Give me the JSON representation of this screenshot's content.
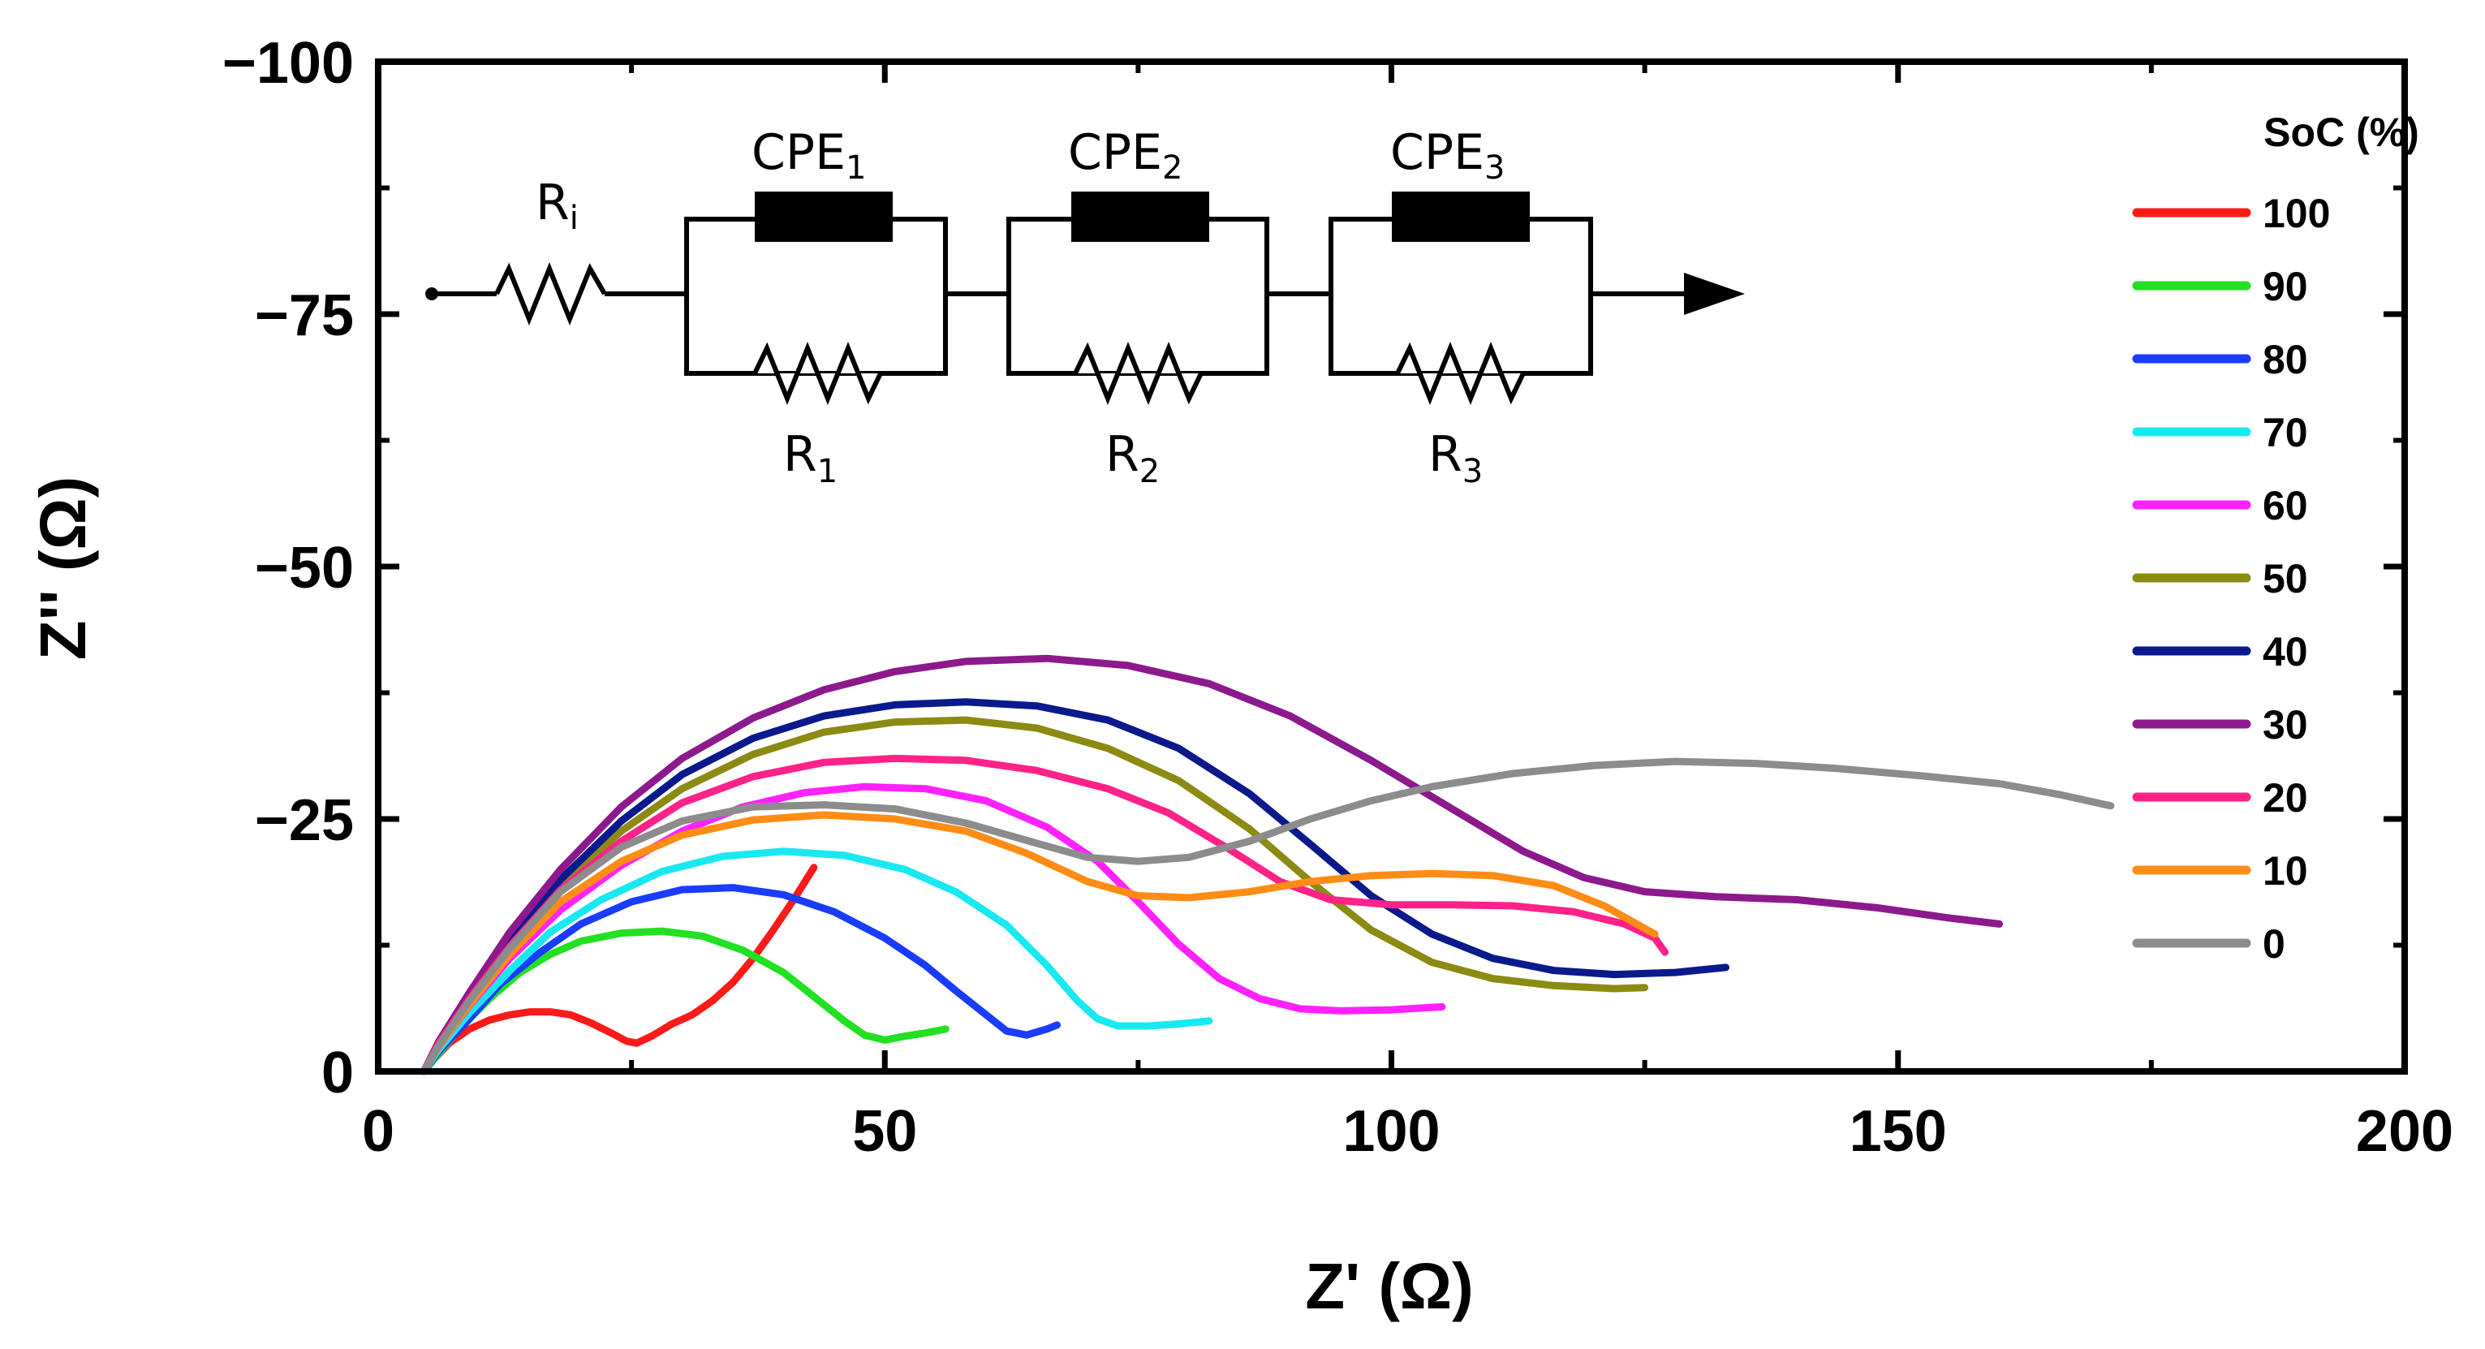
{
  "chart_data": {
    "type": "line",
    "title": "",
    "xlabel": "Z' (Ω)",
    "ylabel": "Z'' (Ω)",
    "xlim": [
      0,
      200
    ],
    "ylim": [
      0,
      -100
    ],
    "xticks": [
      0,
      50,
      100,
      150,
      200
    ],
    "yticks": [
      0,
      -25,
      -50,
      -75,
      -100
    ],
    "xtick_labels": [
      "0",
      "50",
      "100",
      "150",
      "200"
    ],
    "ytick_labels": [
      "0",
      "−25",
      "−50",
      "−75",
      "−100"
    ],
    "legend_title": "SoC (%)",
    "legend_position": "right",
    "series": [
      {
        "name": "100",
        "color": "#ff1a1a",
        "points": [
          [
            4.5,
            0
          ],
          [
            5.5,
            -1.2
          ],
          [
            7,
            -2.8
          ],
          [
            9,
            -4.2
          ],
          [
            11,
            -5.1
          ],
          [
            13,
            -5.6
          ],
          [
            15,
            -5.9
          ],
          [
            17,
            -5.9
          ],
          [
            19,
            -5.6
          ],
          [
            21,
            -4.8
          ],
          [
            23,
            -3.8
          ],
          [
            24.5,
            -3.0
          ],
          [
            25.5,
            -2.8
          ],
          [
            27,
            -3.5
          ],
          [
            29,
            -4.7
          ],
          [
            31,
            -5.6
          ],
          [
            33,
            -7.0
          ],
          [
            35,
            -8.8
          ],
          [
            37,
            -11.2
          ],
          [
            39,
            -14.0
          ],
          [
            41,
            -17.0
          ],
          [
            43,
            -20.2
          ]
        ]
      },
      {
        "name": "90",
        "color": "#22e022",
        "points": [
          [
            4.5,
            0
          ],
          [
            6,
            -1.8
          ],
          [
            8,
            -4.2
          ],
          [
            11,
            -7.2
          ],
          [
            14,
            -9.8
          ],
          [
            17,
            -11.6
          ],
          [
            20,
            -12.9
          ],
          [
            24,
            -13.7
          ],
          [
            28,
            -13.9
          ],
          [
            32,
            -13.4
          ],
          [
            36,
            -12.0
          ],
          [
            40,
            -9.8
          ],
          [
            43,
            -7.4
          ],
          [
            46,
            -5.0
          ],
          [
            48,
            -3.6
          ],
          [
            50,
            -3.1
          ],
          [
            52,
            -3.5
          ],
          [
            54,
            -3.8
          ],
          [
            56,
            -4.2
          ]
        ]
      },
      {
        "name": "80",
        "color": "#1a3cff",
        "points": [
          [
            4.5,
            0
          ],
          [
            6,
            -2.0
          ],
          [
            9,
            -5.2
          ],
          [
            12,
            -8.6
          ],
          [
            16,
            -11.8
          ],
          [
            20,
            -14.6
          ],
          [
            25,
            -16.8
          ],
          [
            30,
            -18.0
          ],
          [
            35,
            -18.2
          ],
          [
            40,
            -17.5
          ],
          [
            45,
            -15.8
          ],
          [
            50,
            -13.2
          ],
          [
            54,
            -10.5
          ],
          [
            57,
            -8.0
          ],
          [
            60,
            -5.6
          ],
          [
            62,
            -4.0
          ],
          [
            64,
            -3.6
          ],
          [
            66,
            -4.2
          ],
          [
            67,
            -4.6
          ]
        ]
      },
      {
        "name": "70",
        "color": "#1ae8f0",
        "points": [
          [
            4.5,
            0
          ],
          [
            6,
            -2.2
          ],
          [
            9,
            -5.8
          ],
          [
            13,
            -10.0
          ],
          [
            17,
            -13.8
          ],
          [
            22,
            -17.0
          ],
          [
            28,
            -19.8
          ],
          [
            34,
            -21.3
          ],
          [
            40,
            -21.8
          ],
          [
            46,
            -21.4
          ],
          [
            52,
            -20.0
          ],
          [
            57,
            -17.8
          ],
          [
            62,
            -14.5
          ],
          [
            66,
            -10.5
          ],
          [
            69,
            -7.0
          ],
          [
            71,
            -5.2
          ],
          [
            73,
            -4.5
          ],
          [
            76,
            -4.5
          ],
          [
            79,
            -4.7
          ],
          [
            82,
            -5.0
          ]
        ]
      },
      {
        "name": "60",
        "color": "#ff22ff",
        "points": [
          [
            4.5,
            0
          ],
          [
            6,
            -2.5
          ],
          [
            9,
            -6.5
          ],
          [
            13,
            -11.2
          ],
          [
            18,
            -16.0
          ],
          [
            24,
            -20.4
          ],
          [
            30,
            -23.8
          ],
          [
            36,
            -26.2
          ],
          [
            42,
            -27.6
          ],
          [
            48,
            -28.2
          ],
          [
            54,
            -28.0
          ],
          [
            60,
            -26.8
          ],
          [
            66,
            -24.2
          ],
          [
            71,
            -20.8
          ],
          [
            75,
            -16.8
          ],
          [
            79,
            -12.6
          ],
          [
            83,
            -9.2
          ],
          [
            87,
            -7.2
          ],
          [
            91,
            -6.2
          ],
          [
            95,
            -6.0
          ],
          [
            100,
            -6.1
          ],
          [
            105,
            -6.4
          ]
        ]
      },
      {
        "name": "50",
        "color": "#8b8b14",
        "points": [
          [
            4.5,
            0
          ],
          [
            6,
            -2.8
          ],
          [
            9,
            -7.2
          ],
          [
            13,
            -12.6
          ],
          [
            18,
            -18.5
          ],
          [
            24,
            -23.8
          ],
          [
            30,
            -28.0
          ],
          [
            37,
            -31.4
          ],
          [
            44,
            -33.6
          ],
          [
            51,
            -34.6
          ],
          [
            58,
            -34.8
          ],
          [
            65,
            -34.0
          ],
          [
            72,
            -32.0
          ],
          [
            79,
            -28.8
          ],
          [
            86,
            -24.0
          ],
          [
            92,
            -18.8
          ],
          [
            98,
            -14.0
          ],
          [
            104,
            -10.8
          ],
          [
            110,
            -9.2
          ],
          [
            116,
            -8.5
          ],
          [
            122,
            -8.2
          ],
          [
            125,
            -8.3
          ]
        ]
      },
      {
        "name": "40",
        "color": "#0a1a8c",
        "points": [
          [
            4.5,
            0
          ],
          [
            6,
            -2.8
          ],
          [
            9,
            -7.4
          ],
          [
            13,
            -13.0
          ],
          [
            18,
            -19.0
          ],
          [
            24,
            -24.8
          ],
          [
            30,
            -29.4
          ],
          [
            37,
            -33.0
          ],
          [
            44,
            -35.2
          ],
          [
            51,
            -36.3
          ],
          [
            58,
            -36.6
          ],
          [
            65,
            -36.2
          ],
          [
            72,
            -34.8
          ],
          [
            79,
            -32.0
          ],
          [
            86,
            -27.5
          ],
          [
            92,
            -22.5
          ],
          [
            98,
            -17.4
          ],
          [
            104,
            -13.6
          ],
          [
            110,
            -11.2
          ],
          [
            116,
            -10.0
          ],
          [
            122,
            -9.6
          ],
          [
            128,
            -9.8
          ],
          [
            133,
            -10.3
          ]
        ]
      },
      {
        "name": "30",
        "color": "#8c1a8c",
        "points": [
          [
            4.5,
            0
          ],
          [
            6,
            -3.0
          ],
          [
            9,
            -7.8
          ],
          [
            13,
            -13.8
          ],
          [
            18,
            -20.0
          ],
          [
            24,
            -26.2
          ],
          [
            30,
            -31.0
          ],
          [
            37,
            -35.0
          ],
          [
            44,
            -37.8
          ],
          [
            51,
            -39.6
          ],
          [
            58,
            -40.6
          ],
          [
            66,
            -40.9
          ],
          [
            74,
            -40.2
          ],
          [
            82,
            -38.4
          ],
          [
            90,
            -35.2
          ],
          [
            98,
            -30.8
          ],
          [
            106,
            -26.0
          ],
          [
            113,
            -21.8
          ],
          [
            119,
            -19.2
          ],
          [
            125,
            -17.8
          ],
          [
            132,
            -17.3
          ],
          [
            140,
            -17.0
          ],
          [
            148,
            -16.2
          ],
          [
            155,
            -15.2
          ],
          [
            160,
            -14.6
          ]
        ]
      },
      {
        "name": "20",
        "color": "#ff2288",
        "points": [
          [
            4.5,
            0
          ],
          [
            6,
            -2.8
          ],
          [
            9,
            -7.2
          ],
          [
            13,
            -12.4
          ],
          [
            18,
            -18.0
          ],
          [
            24,
            -22.8
          ],
          [
            30,
            -26.6
          ],
          [
            37,
            -29.2
          ],
          [
            44,
            -30.6
          ],
          [
            51,
            -31.0
          ],
          [
            58,
            -30.8
          ],
          [
            65,
            -29.8
          ],
          [
            72,
            -28.0
          ],
          [
            78,
            -25.6
          ],
          [
            84,
            -22.0
          ],
          [
            89,
            -18.8
          ],
          [
            94,
            -17.0
          ],
          [
            100,
            -16.5
          ],
          [
            106,
            -16.5
          ],
          [
            112,
            -16.4
          ],
          [
            118,
            -15.8
          ],
          [
            123,
            -14.6
          ],
          [
            126,
            -13.2
          ],
          [
            127,
            -11.8
          ]
        ]
      },
      {
        "name": "10",
        "color": "#ff8c14",
        "points": [
          [
            4.5,
            0
          ],
          [
            6,
            -2.5
          ],
          [
            9,
            -6.6
          ],
          [
            13,
            -11.6
          ],
          [
            18,
            -16.8
          ],
          [
            24,
            -20.8
          ],
          [
            30,
            -23.4
          ],
          [
            37,
            -24.9
          ],
          [
            44,
            -25.4
          ],
          [
            51,
            -25.0
          ],
          [
            58,
            -23.8
          ],
          [
            64,
            -21.6
          ],
          [
            70,
            -18.8
          ],
          [
            75,
            -17.4
          ],
          [
            80,
            -17.2
          ],
          [
            86,
            -17.8
          ],
          [
            92,
            -18.8
          ],
          [
            98,
            -19.4
          ],
          [
            104,
            -19.6
          ],
          [
            110,
            -19.4
          ],
          [
            116,
            -18.4
          ],
          [
            121,
            -16.4
          ],
          [
            126,
            -13.6
          ]
        ]
      },
      {
        "name": "0",
        "color": "#8c8c8c",
        "points": [
          [
            4.5,
            0
          ],
          [
            6,
            -2.6
          ],
          [
            9,
            -7.0
          ],
          [
            13,
            -12.2
          ],
          [
            18,
            -17.8
          ],
          [
            24,
            -22.2
          ],
          [
            30,
            -24.8
          ],
          [
            37,
            -26.2
          ],
          [
            44,
            -26.4
          ],
          [
            51,
            -26.0
          ],
          [
            58,
            -24.6
          ],
          [
            65,
            -22.6
          ],
          [
            70,
            -21.2
          ],
          [
            75,
            -20.8
          ],
          [
            80,
            -21.2
          ],
          [
            86,
            -22.8
          ],
          [
            92,
            -25.0
          ],
          [
            98,
            -26.8
          ],
          [
            104,
            -28.2
          ],
          [
            112,
            -29.5
          ],
          [
            120,
            -30.3
          ],
          [
            128,
            -30.7
          ],
          [
            136,
            -30.5
          ],
          [
            144,
            -30.0
          ],
          [
            152,
            -29.3
          ],
          [
            160,
            -28.5
          ],
          [
            166,
            -27.4
          ],
          [
            171,
            -26.3
          ]
        ]
      }
    ],
    "inset_circuit": {
      "resistors": [
        "R",
        "R",
        "R",
        "R"
      ],
      "resistor_subscripts": [
        "i",
        "1",
        "2",
        "3"
      ],
      "cpes": [
        "CPE",
        "CPE",
        "CPE"
      ],
      "cpe_subscripts": [
        "1",
        "2",
        "3"
      ]
    }
  }
}
